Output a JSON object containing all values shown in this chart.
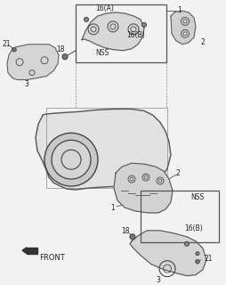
{
  "bg_color": "#f2f2f2",
  "line_color": "#555555",
  "dark_line": "#222222",
  "labels": {
    "front_arrow": "FRONT",
    "nss_top": "NSS",
    "nss_bottom": "NSS",
    "16a": "16(A)",
    "16b_top": "16(B)",
    "16b_bottom": "16(B)",
    "1_top": "1",
    "2_top": "2",
    "3_top": "3",
    "18_top": "18",
    "21_top": "21",
    "1_bot": "1",
    "2_bot": "2",
    "3_bot": "3",
    "18_bot": "18",
    "21_bot": "21"
  },
  "font_size_label": 5.5,
  "font_size_front": 6.0
}
